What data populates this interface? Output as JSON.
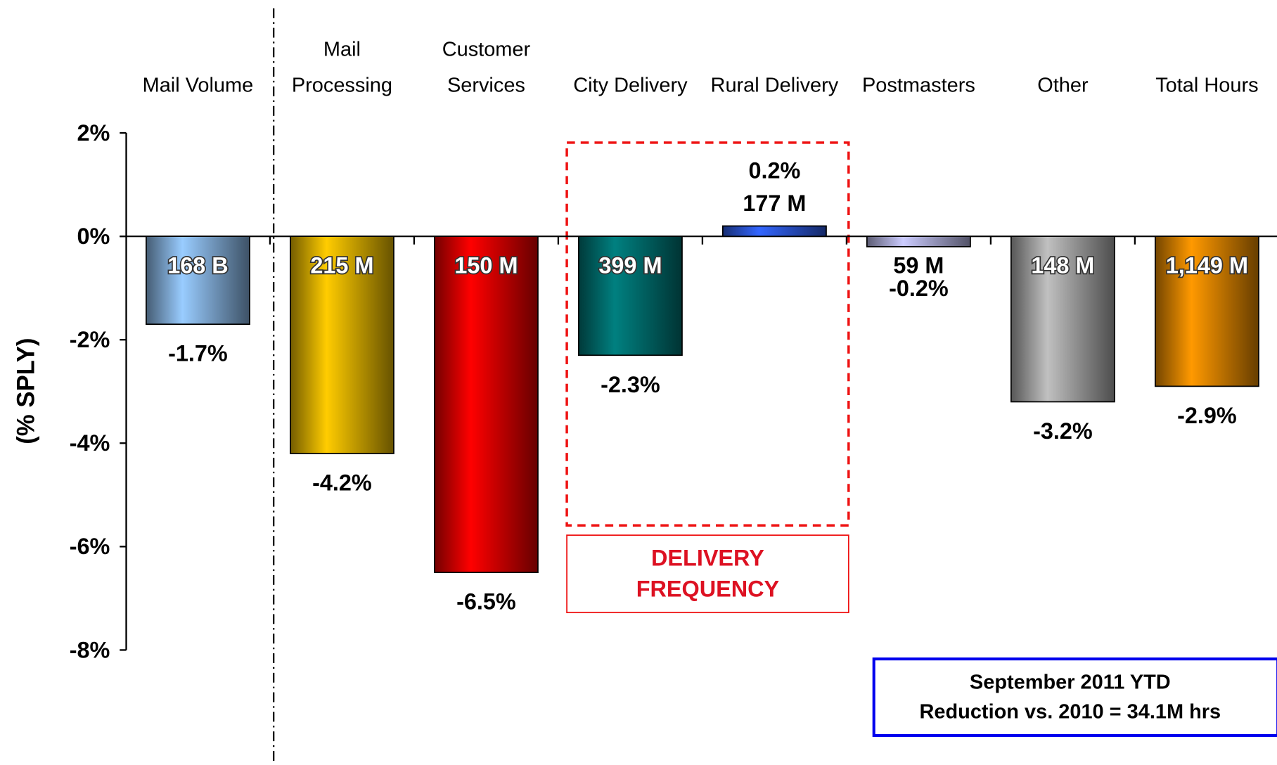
{
  "chart_data": {
    "type": "bar",
    "y_label": "(% SPLY)",
    "categories": [
      [
        "Mail Volume"
      ],
      [
        "Mail",
        "Processing"
      ],
      [
        "Customer",
        "Services"
      ],
      [
        "City Delivery"
      ],
      [
        "Rural Delivery"
      ],
      [
        "Postmasters"
      ],
      [
        "Other"
      ],
      [
        "Total Hours"
      ]
    ],
    "values": [
      -1.7,
      -4.2,
      -6.5,
      -2.3,
      0.2,
      -0.2,
      -3.2,
      -2.9
    ],
    "value_labels": [
      "-1.7%",
      "-4.2%",
      "-6.5%",
      "-2.3%",
      "0.2%",
      "-0.2%",
      "-3.2%",
      "-2.9%"
    ],
    "amounts": [
      "168 B",
      "215 M",
      "150 M",
      "399 M",
      "177 M",
      "59 M",
      "148 M",
      "1,149 M"
    ],
    "colors": [
      "#99ccff",
      "#ffcc00",
      "#ff0000",
      "#008080",
      "#3366ff",
      "#ccccff",
      "#c0c0c0",
      "#ff9900"
    ],
    "ylim": [
      -8,
      2
    ],
    "yticks": [
      {
        "value": -8,
        "label": "-8%"
      },
      {
        "value": -6,
        "label": "-6%"
      },
      {
        "value": -4,
        "label": "-4%"
      },
      {
        "value": -2,
        "label": "-2%"
      },
      {
        "value": 0,
        "label": "0%"
      },
      {
        "value": 2,
        "label": "2%"
      }
    ],
    "annotations": {
      "delivery_frequency": [
        "DELIVERY",
        "FREQUENCY"
      ],
      "note": [
        "September 2011 YTD",
        "Reduction vs. 2010 = 34.1M hrs"
      ]
    }
  }
}
